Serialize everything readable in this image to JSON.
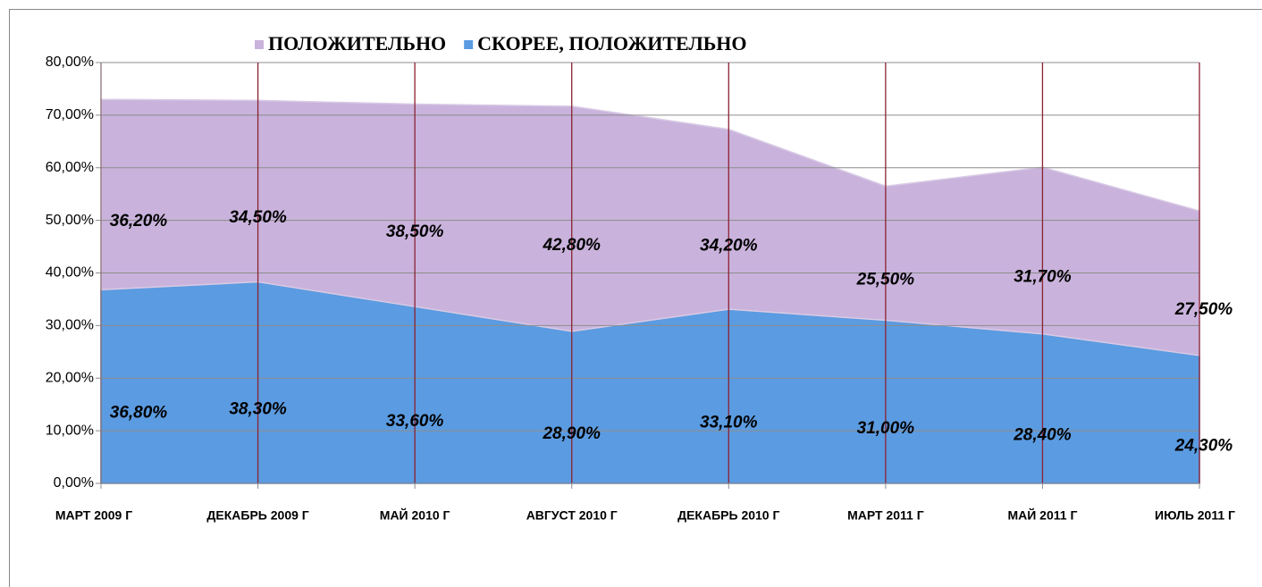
{
  "chart_data": {
    "type": "stacked_area",
    "categories": [
      "МАРТ 2009 Г",
      "ДЕКАБРЬ 2009 Г",
      "МАЙ 2010 Г",
      "АВГУСТ 2010 Г",
      "ДЕКАБРЬ 2010 Г",
      "МАРТ 2011 Г",
      "МАЙ 2011 Г",
      "ИЮЛЬ 2011 Г"
    ],
    "series": [
      {
        "name": "ПОЛОЖИТЕЛЬНО",
        "color": "#c9b3dc",
        "values": [
          36.2,
          34.5,
          38.5,
          42.8,
          34.2,
          25.5,
          31.7,
          27.5
        ],
        "value_labels": [
          "36,20%",
          "34,50%",
          "38,50%",
          "42,80%",
          "34,20%",
          "25,50%",
          "31,70%",
          "27,50%"
        ]
      },
      {
        "name": "СКОРЕЕ, ПОЛОЖИТЕЛЬНО",
        "color": "#5b9be1",
        "values": [
          36.8,
          38.3,
          33.6,
          28.9,
          33.1,
          31.0,
          28.4,
          24.3
        ],
        "value_labels": [
          "36,80%",
          "38,30%",
          "33,60%",
          "28,90%",
          "33,10%",
          "31,00%",
          "28,40%",
          "24,30%"
        ]
      }
    ],
    "ylim": [
      0,
      80
    ],
    "yticks": [
      {
        "value": 0,
        "label": "0,00%"
      },
      {
        "value": 10,
        "label": "10,00%"
      },
      {
        "value": 20,
        "label": "20,00%"
      },
      {
        "value": 30,
        "label": "30,00%"
      },
      {
        "value": 40,
        "label": "40,00%"
      },
      {
        "value": 50,
        "label": "50,00%"
      },
      {
        "value": 60,
        "label": "60,00%"
      },
      {
        "value": 70,
        "label": "70,00%"
      },
      {
        "value": 80,
        "label": "80,00%"
      }
    ],
    "grid": true
  }
}
